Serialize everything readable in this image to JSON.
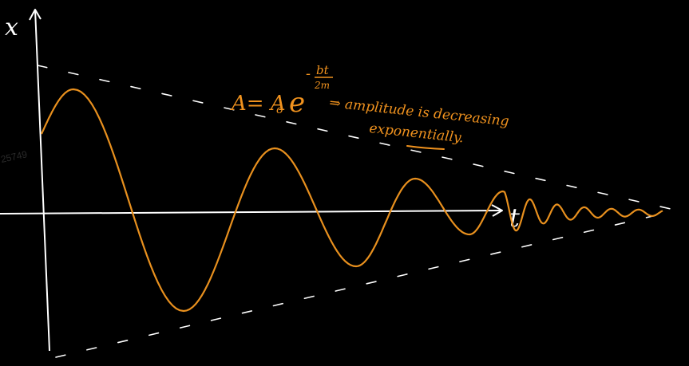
{
  "axes": {
    "y_label": "x",
    "x_label": "t"
  },
  "watermark": "25749",
  "formula": {
    "lhs": "A= A",
    "subscript": "o",
    "base": "e",
    "exp_minus": "-",
    "exp_num": "bt",
    "exp_den": "2m"
  },
  "note": {
    "line1": "⇒ amplitude is decreasing",
    "line2": "exponentially."
  },
  "colors": {
    "curve": "#e8901e",
    "axes": "#ffffff",
    "envelope": "#ffffff",
    "text": "#f0921e",
    "background": "#000000"
  }
}
